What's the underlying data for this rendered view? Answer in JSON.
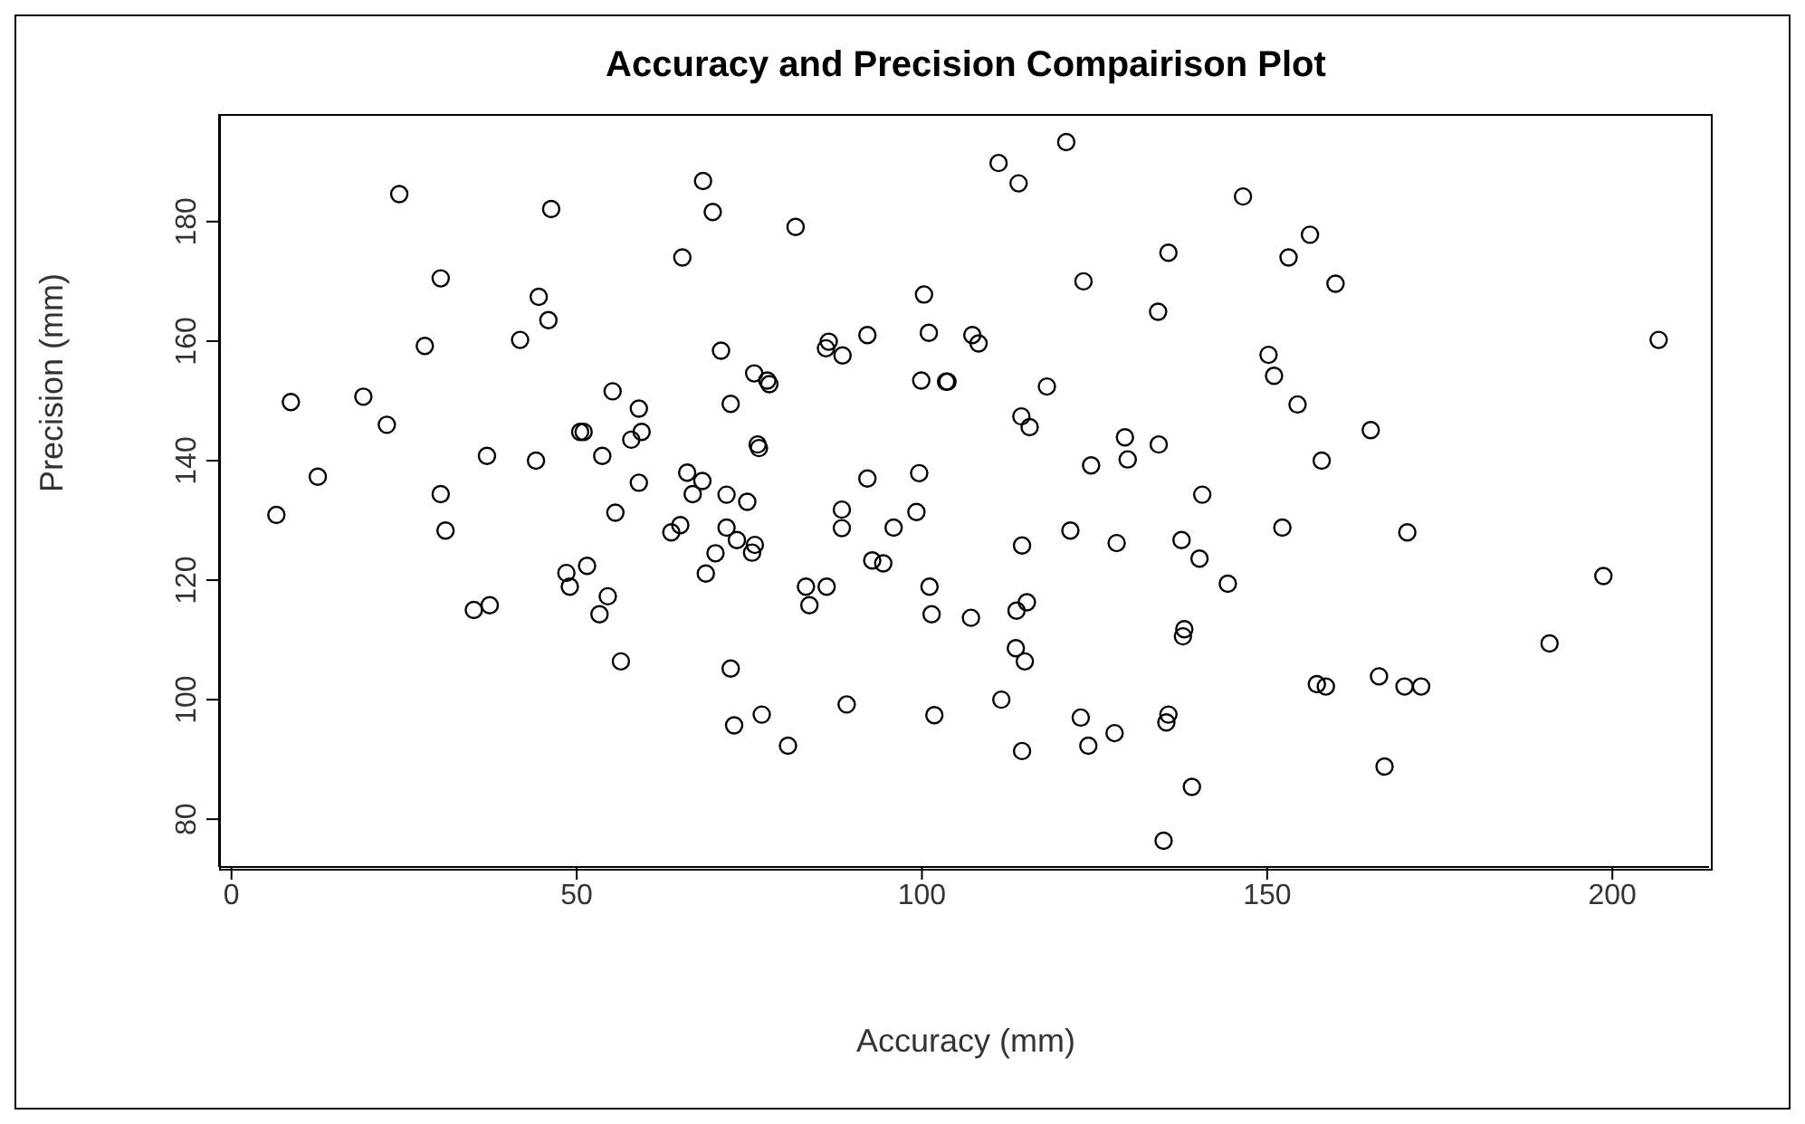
{
  "chart_data": {
    "type": "scatter",
    "title": "Accuracy and Precision Compairison Plot",
    "xlabel": "Accuracy (mm)",
    "ylabel": "Precision (mm)",
    "marker": "circle",
    "grid": false,
    "legend": false,
    "xlim": [
      -1.8,
      214
    ],
    "ylim": [
      72,
      198
    ],
    "xticks": [
      0,
      50,
      100,
      150,
      200
    ],
    "yticks": [
      80,
      100,
      120,
      140,
      160,
      180
    ],
    "series": [
      {
        "color": "#000000",
        "x": [
          24.3,
          46.3,
          68.3,
          69.7,
          65.3,
          30.3,
          44.5,
          45.9,
          28.0,
          41.8,
          70.9,
          8.6,
          19.1,
          22.5,
          55.2,
          59.0,
          50.5,
          51.0,
          59.4,
          57.9,
          53.7,
          37.0,
          44.1,
          12.5,
          66.0,
          68.2,
          72.3,
          81.7,
          111.1,
          114.0,
          120.9,
          135.7,
          123.4,
          134.2,
          100.3,
          101.0,
          92.1,
          86.5,
          86.1,
          88.5,
          107.3,
          108.2,
          75.7,
          77.6,
          77.9,
          99.9,
          103.5,
          103.7,
          118.1,
          114.4,
          115.6,
          76.2,
          76.4,
          92.1,
          99.6,
          124.5,
          129.4,
          129.8,
          134.3,
          146.5,
          156.2,
          153.1,
          159.9,
          206.7,
          150.2,
          151.0,
          154.4,
          165.0,
          157.9,
          6.5,
          30.3,
          31.0,
          59.0,
          55.6,
          66.8,
          71.7,
          65.0,
          63.7,
          71.7,
          70.1,
          68.7,
          51.5,
          48.5,
          49.0,
          54.5,
          53.3,
          35.1,
          37.4,
          56.4,
          72.3,
          74.7,
          73.2,
          75.8,
          75.4,
          88.4,
          88.4,
          95.9,
          99.2,
          92.8,
          94.4,
          83.2,
          86.2,
          83.7,
          101.1,
          101.4,
          107.1,
          114.5,
          121.5,
          128.2,
          137.6,
          140.2,
          140.6,
          113.7,
          115.2,
          113.6,
          114.9,
          138.0,
          137.8,
          72.8,
          76.8,
          80.6,
          89.1,
          101.8,
          111.5,
          114.5,
          123.0,
          124.1,
          127.9,
          135.7,
          135.4,
          139.1,
          135.0,
          152.2,
          170.3,
          144.3,
          198.7,
          190.9,
          157.2,
          158.5,
          166.2,
          169.9,
          172.3,
          167.0
        ],
        "values": [
          184.6,
          182.1,
          186.8,
          181.6,
          174.0,
          170.5,
          167.4,
          163.5,
          159.2,
          160.2,
          158.4,
          149.8,
          150.7,
          146.0,
          151.6,
          148.7,
          144.8,
          144.8,
          144.8,
          143.5,
          140.8,
          140.8,
          140.0,
          137.3,
          138.0,
          136.6,
          149.5,
          179.1,
          189.8,
          186.4,
          193.3,
          174.8,
          170.0,
          164.9,
          167.8,
          161.4,
          161.0,
          159.9,
          158.8,
          157.6,
          161.0,
          159.6,
          154.6,
          153.4,
          152.8,
          153.4,
          153.2,
          153.2,
          152.4,
          147.4,
          145.6,
          142.7,
          142.1,
          137.0,
          137.9,
          139.2,
          143.9,
          140.2,
          142.7,
          184.2,
          177.8,
          174.0,
          169.6,
          160.2,
          157.7,
          154.2,
          149.4,
          145.1,
          140.0,
          130.9,
          134.4,
          128.3,
          136.3,
          131.3,
          134.4,
          134.3,
          129.2,
          128.0,
          128.8,
          124.5,
          121.1,
          122.4,
          121.2,
          118.9,
          117.3,
          114.3,
          115.0,
          115.8,
          106.4,
          105.2,
          133.1,
          126.7,
          125.9,
          124.6,
          131.8,
          128.7,
          128.8,
          131.4,
          123.3,
          122.8,
          118.9,
          118.9,
          115.8,
          118.9,
          114.3,
          113.7,
          125.8,
          128.3,
          126.2,
          126.7,
          123.6,
          134.3,
          114.9,
          116.3,
          108.6,
          106.4,
          111.8,
          110.6,
          95.7,
          97.5,
          92.3,
          99.2,
          97.4,
          100.0,
          91.4,
          97.0,
          92.3,
          94.4,
          97.5,
          96.2,
          85.4,
          76.4,
          128.8,
          128.0,
          119.4,
          120.7,
          109.4,
          102.6,
          102.2,
          103.9,
          102.2,
          102.2,
          88.8
        ]
      }
    ]
  }
}
